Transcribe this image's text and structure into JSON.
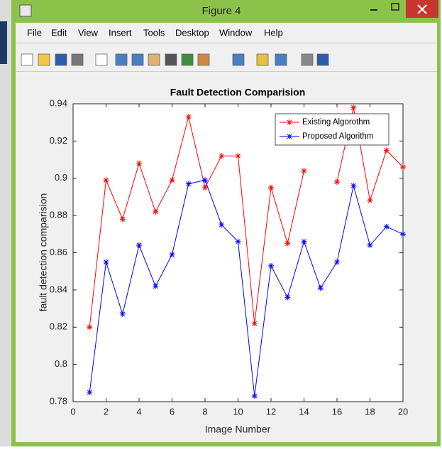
{
  "window": {
    "title": "Figure 4"
  },
  "menu": [
    "File",
    "Edit",
    "View",
    "Insert",
    "Tools",
    "Desktop",
    "Window",
    "Help"
  ],
  "chart_data": {
    "type": "line",
    "title": "Fault Detection Comparision",
    "x_label": "Image Number",
    "y_label": "fault detection comparision",
    "x": [
      1,
      2,
      3,
      4,
      5,
      6,
      7,
      8,
      9,
      10,
      11,
      12,
      13,
      14,
      15,
      16,
      17,
      18,
      19,
      20
    ],
    "series": [
      {
        "name": "Existing Algorothm",
        "color": "#ff0000",
        "values": [
          0.82,
          0.899,
          0.878,
          0.908,
          0.882,
          0.899,
          0.933,
          0.895,
          0.912,
          0.912,
          0.822,
          0.895,
          0.865,
          0.904,
          null,
          0.898,
          0.938,
          0.888,
          0.915,
          0.906
        ]
      },
      {
        "name": "Proposed Algorithm",
        "color": "#0000ff",
        "values": [
          0.785,
          0.855,
          0.827,
          0.864,
          0.842,
          0.859,
          0.897,
          0.899,
          0.875,
          0.866,
          0.783,
          0.853,
          0.836,
          0.866,
          0.841,
          0.855,
          0.896,
          0.864,
          0.874,
          0.87
        ]
      }
    ],
    "xlim": [
      0,
      20
    ],
    "xticks": [
      0,
      2,
      4,
      6,
      8,
      10,
      12,
      14,
      16,
      18,
      20
    ],
    "ylim": [
      0.78,
      0.94
    ],
    "yticks": [
      0.78,
      0.8,
      0.82,
      0.84,
      0.86,
      0.88,
      0.9,
      0.92,
      0.94
    ],
    "legend": "upper right"
  }
}
